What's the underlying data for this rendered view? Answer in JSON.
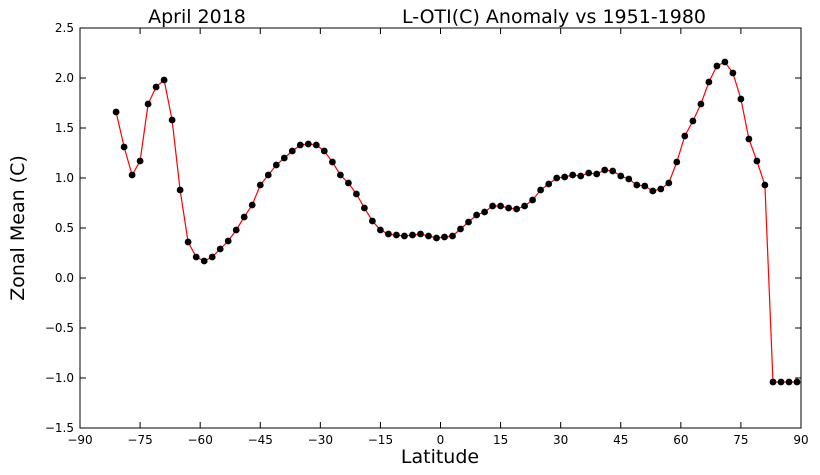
{
  "chart_data": {
    "type": "line",
    "title_left": "April 2018",
    "title_right": "L-OTI(C) Anomaly vs 1951-1980",
    "xlabel": "Latitude",
    "ylabel": "Zonal Mean (C)",
    "xlim": [
      -90,
      90
    ],
    "ylim": [
      -1.5,
      2.5
    ],
    "xticks": [
      -90,
      -75,
      -60,
      -45,
      -30,
      -15,
      0,
      15,
      30,
      45,
      60,
      75,
      90
    ],
    "xtick_labels": [
      "−90",
      "−75",
      "−60",
      "−45",
      "−30",
      "−15",
      "0",
      "15",
      "30",
      "45",
      "60",
      "75",
      "90"
    ],
    "yticks": [
      -1.5,
      -1.0,
      -0.5,
      0.0,
      0.5,
      1.0,
      1.5,
      2.0,
      2.5
    ],
    "ytick_labels": [
      "−1.5",
      "−1.0",
      "−0.5",
      "0.0",
      "0.5",
      "1.0",
      "1.5",
      "2.0",
      "2.5"
    ],
    "grid": false,
    "line_color": "#ff0000",
    "marker_color": "#000000",
    "x": [
      -81,
      -79,
      -77,
      -75,
      -73,
      -71,
      -69,
      -67,
      -65,
      -63,
      -61,
      -59,
      -57,
      -55,
      -53,
      -51,
      -49,
      -47,
      -45,
      -43,
      -41,
      -39,
      -37,
      -35,
      -33,
      -31,
      -29,
      -27,
      -25,
      -23,
      -21,
      -19,
      -17,
      -15,
      -13,
      -11,
      -9,
      -7,
      -5,
      -3,
      -1,
      1,
      3,
      5,
      7,
      9,
      11,
      13,
      15,
      17,
      19,
      21,
      23,
      25,
      27,
      29,
      31,
      33,
      35,
      37,
      39,
      41,
      43,
      45,
      47,
      49,
      51,
      53,
      55,
      57,
      59,
      61,
      63,
      65,
      67,
      69,
      71,
      73,
      75,
      77,
      79,
      81,
      83,
      85,
      87,
      89
    ],
    "y": [
      1.66,
      1.31,
      1.03,
      1.17,
      1.74,
      1.91,
      1.98,
      1.58,
      0.88,
      0.36,
      0.21,
      0.17,
      0.21,
      0.29,
      0.37,
      0.48,
      0.61,
      0.73,
      0.93,
      1.03,
      1.13,
      1.2,
      1.27,
      1.33,
      1.34,
      1.33,
      1.27,
      1.16,
      1.03,
      0.95,
      0.84,
      0.7,
      0.57,
      0.48,
      0.44,
      0.43,
      0.42,
      0.43,
      0.44,
      0.42,
      0.4,
      0.41,
      0.42,
      0.49,
      0.56,
      0.63,
      0.66,
      0.72,
      0.72,
      0.7,
      0.69,
      0.72,
      0.78,
      0.88,
      0.94,
      1.0,
      1.01,
      1.03,
      1.02,
      1.05,
      1.04,
      1.08,
      1.07,
      1.02,
      0.99,
      0.93,
      0.92,
      0.87,
      0.89,
      0.95,
      1.16,
      1.42,
      1.57,
      1.74,
      1.96,
      2.12,
      2.16,
      2.05,
      1.79,
      1.39,
      1.17,
      0.93,
      -1.04,
      -1.04,
      -1.04,
      -1.04
    ]
  }
}
